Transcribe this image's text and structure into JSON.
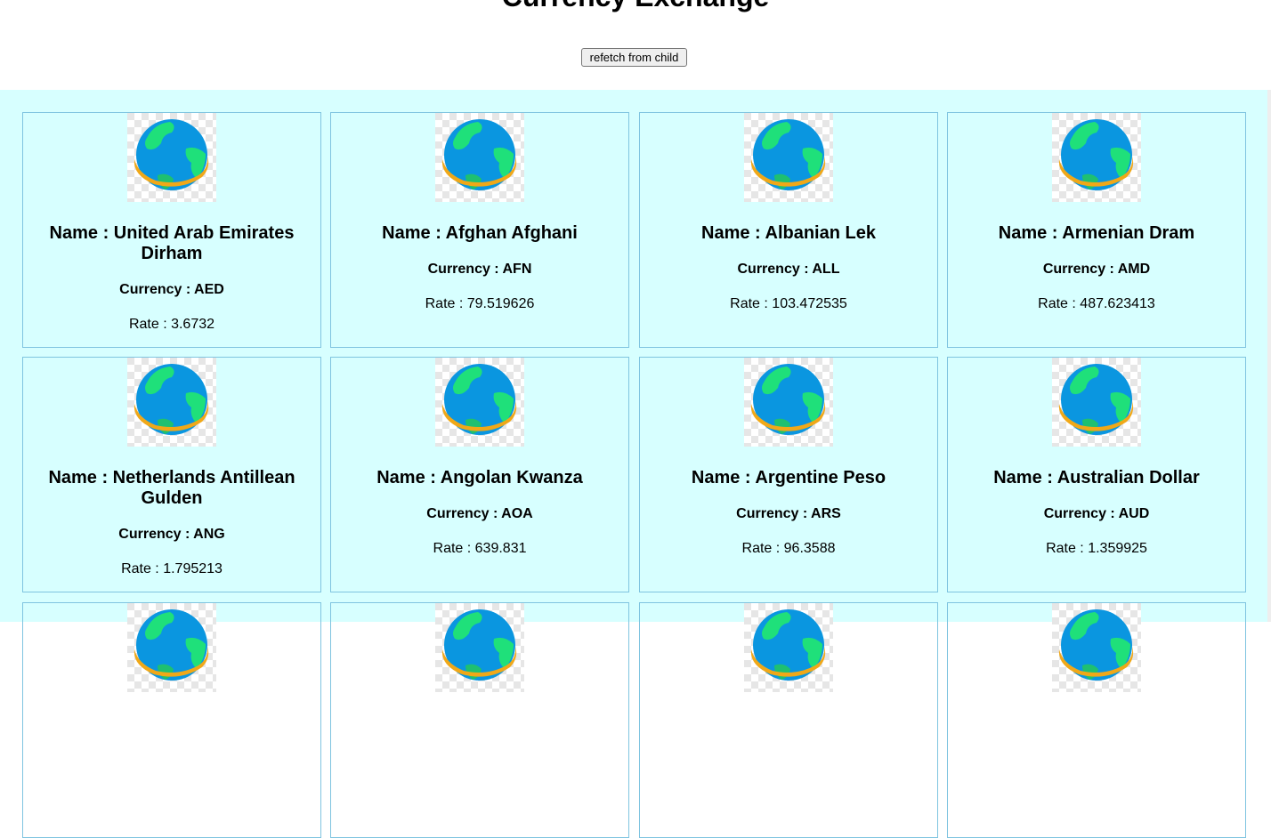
{
  "header": {
    "title": "Currency Exchange",
    "refetch_label": "refetch from child"
  },
  "labels": {
    "name_prefix": "Name : ",
    "currency_prefix": "Currency : ",
    "rate_prefix": "Rate : "
  },
  "card_icon": "globe-icon",
  "colors": {
    "grid_background": "#d7ffff",
    "card_border": "#7fc4e0",
    "globe_ocean": "#0a96e0",
    "globe_land": "#1fe07a",
    "globe_ring": "#f0a818"
  },
  "cards": [
    {
      "name": "Name : United Arab Emirates Dirham",
      "currency": "Currency : AED",
      "rate": "Rate : 3.6732"
    },
    {
      "name": "Name : Afghan Afghani",
      "currency": "Currency : AFN",
      "rate": "Rate : 79.519626"
    },
    {
      "name": "Name : Albanian Lek",
      "currency": "Currency : ALL",
      "rate": "Rate : 103.472535"
    },
    {
      "name": "Name : Armenian Dram",
      "currency": "Currency : AMD",
      "rate": "Rate : 487.623413"
    },
    {
      "name": "Name : Netherlands Antillean Gulden",
      "currency": "Currency : ANG",
      "rate": "Rate : 1.795213"
    },
    {
      "name": "Name : Angolan Kwanza",
      "currency": "Currency : AOA",
      "rate": "Rate : 639.831"
    },
    {
      "name": "Name : Argentine Peso",
      "currency": "Currency : ARS",
      "rate": "Rate : 96.3588"
    },
    {
      "name": "Name : Australian Dollar",
      "currency": "Currency : AUD",
      "rate": "Rate : 1.359925"
    }
  ]
}
